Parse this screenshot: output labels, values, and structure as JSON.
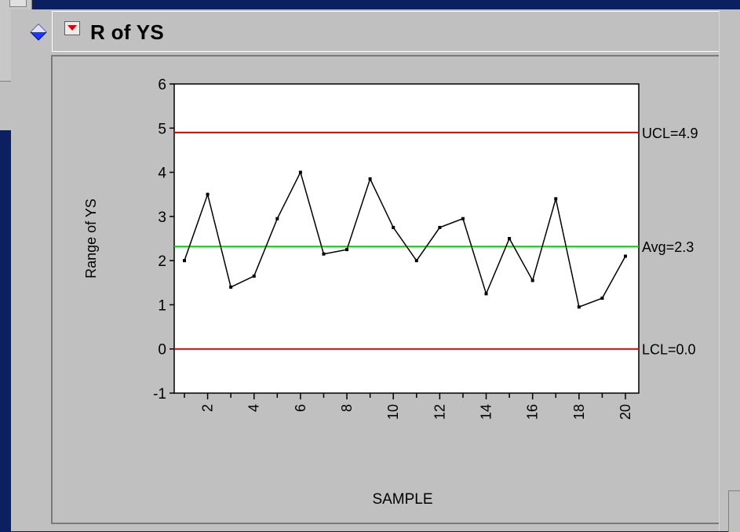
{
  "window": {
    "title": "R of YS"
  },
  "colors": {
    "limit_line": "#e00000",
    "avg_line": "#00e000",
    "data_line": "#000000",
    "panel_bg": "#c0c0c0",
    "desktop_bg": "#0a2060",
    "disclosure_icon": "#1a3cff"
  },
  "icons": {
    "disclosure": "blue-diamond-disclosure-icon",
    "menu": "red-triangle-menu-icon"
  },
  "chart_data": {
    "type": "line",
    "xlabel": "SAMPLE",
    "ylabel": "Range of YS",
    "ylim": [
      -1,
      6
    ],
    "xlim": [
      1,
      20
    ],
    "yticks": [
      "-1",
      "0",
      "1",
      "2",
      "3",
      "4",
      "5",
      "6"
    ],
    "xticks": [
      "2",
      "4",
      "6",
      "8",
      "10",
      "12",
      "14",
      "16",
      "18",
      "20"
    ],
    "grid": false,
    "series": [
      {
        "x": [
          1,
          2,
          3,
          4,
          5,
          6,
          7,
          8,
          9,
          10,
          11,
          12,
          13,
          14,
          15,
          16,
          17,
          18,
          19,
          20
        ],
        "values": [
          2.0,
          3.5,
          1.4,
          1.65,
          2.95,
          4.0,
          2.15,
          2.25,
          3.85,
          2.75,
          2.0,
          2.75,
          2.95,
          1.25,
          2.5,
          1.55,
          3.4,
          0.95,
          1.15,
          2.1
        ]
      }
    ],
    "reference_lines": [
      {
        "label": "UCL=4.9",
        "value": 4.9,
        "kind": "limit"
      },
      {
        "label": "Avg=2.3",
        "value": 2.32,
        "kind": "avg"
      },
      {
        "label": "LCL=0.0",
        "value": 0.0,
        "kind": "limit"
      }
    ]
  }
}
